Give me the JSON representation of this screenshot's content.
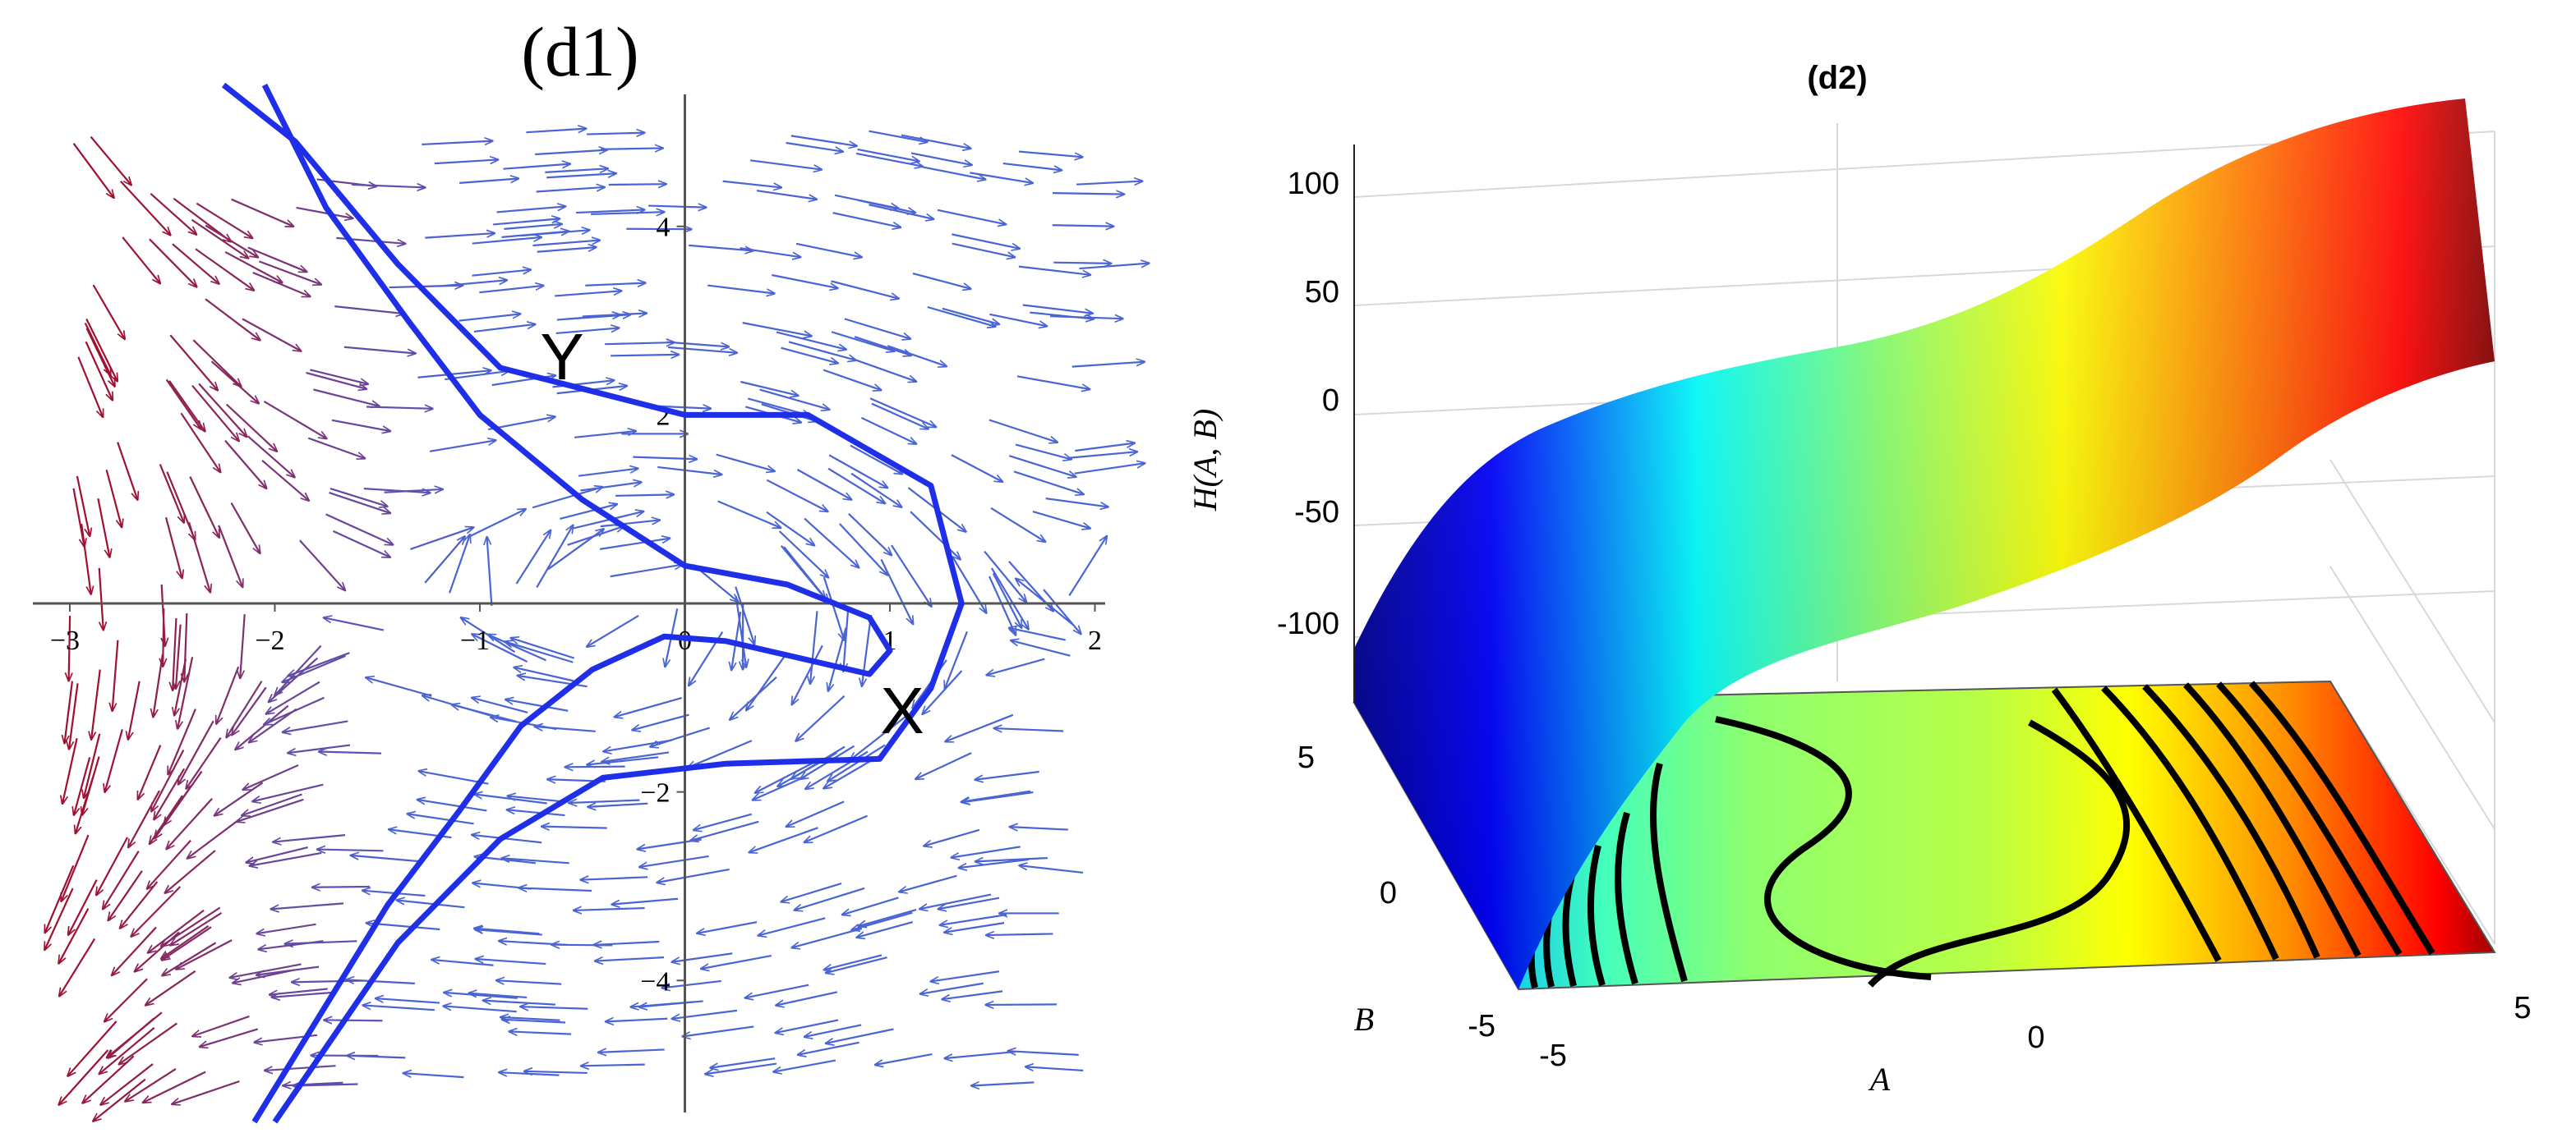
{
  "panels": {
    "left": {
      "title": "(d1)",
      "markers": [
        "Y",
        "X"
      ]
    },
    "right": {
      "title": "(d2)"
    }
  },
  "chart_data": [
    {
      "type": "vector-field",
      "title": "(d1)",
      "xlabel": "",
      "ylabel": "",
      "xlim": [
        -3.1,
        2.05
      ],
      "ylim": [
        -5.4,
        5.4
      ],
      "x_ticks": [
        -3,
        -2,
        -1,
        0,
        1,
        2
      ],
      "y_ticks": [
        -4,
        -2,
        2,
        4
      ],
      "grid": false,
      "arrow_colors": [
        "#4a64d4",
        "#a01030"
      ],
      "curve_color": "#1f2fe8",
      "annotations": [
        {
          "text": "Y",
          "x": -0.55,
          "y": 2.7
        },
        {
          "text": "X",
          "x": 1.1,
          "y": -1.15
        }
      ],
      "series": [
        {
          "x": [
            -2.05,
            -1.75,
            -1.35,
            -1.0,
            -0.5,
            0.0,
            0.5,
            0.9,
            1.0,
            0.9,
            0.6,
            0.2,
            -0.1,
            -0.45,
            -0.8,
            -1.1,
            -1.45,
            -2.1
          ],
          "y": [
            5.5,
            4.2,
            3.0,
            2.0,
            1.1,
            0.4,
            0.2,
            -0.15,
            -0.5,
            -0.75,
            -0.6,
            -0.4,
            -0.35,
            -0.7,
            -1.3,
            -2.2,
            -3.2,
            -5.5
          ]
        },
        {
          "x": [
            -2.25,
            -1.9,
            -1.4,
            -0.9,
            0.0,
            0.6,
            1.2,
            1.35,
            1.2,
            0.95,
            0.2,
            -0.4,
            -0.9,
            -1.4,
            -2.0
          ],
          "y": [
            5.5,
            4.9,
            3.6,
            2.5,
            2.0,
            2.0,
            1.25,
            0.0,
            -0.9,
            -1.65,
            -1.7,
            -1.85,
            -2.5,
            -3.6,
            -5.5
          ]
        }
      ]
    },
    {
      "type": "surface",
      "title": "(d2)",
      "xlabel": "A",
      "ylabel": "B",
      "zlabel": "H(A, B)",
      "xlim": [
        -5,
        5
      ],
      "ylim": [
        -5,
        5
      ],
      "zlim": [
        -150,
        100
      ],
      "x_ticks": [
        -5,
        0,
        5
      ],
      "y_ticks": [
        -5,
        0,
        5
      ],
      "z_ticks": [
        -100,
        -50,
        0,
        50,
        100
      ],
      "colormap": "jet",
      "contours": "projected on base plane",
      "grid": true
    }
  ]
}
